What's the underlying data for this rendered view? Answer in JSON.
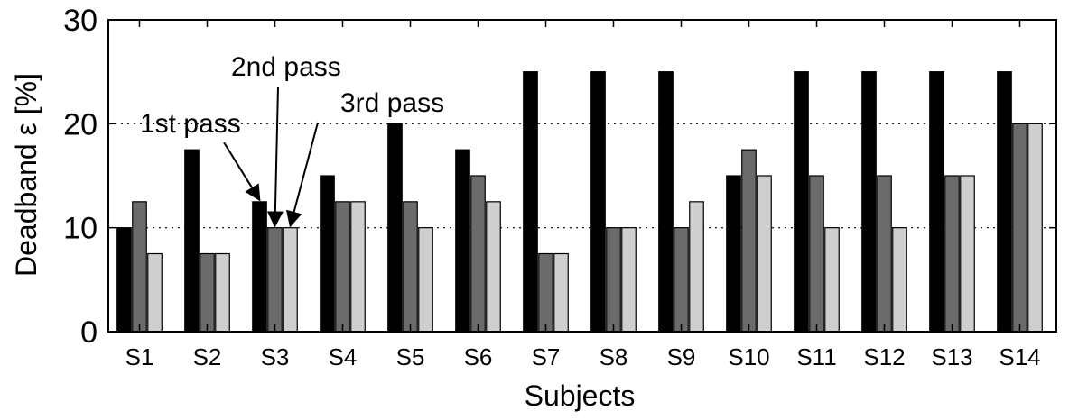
{
  "chart_data": {
    "type": "bar",
    "title": "",
    "xlabel": "Subjects",
    "ylabel": "Deadband ε [%]",
    "ylim": [
      0,
      30
    ],
    "yticks": [
      0,
      10,
      20,
      30
    ],
    "grid": "horizontal dotted",
    "categories": [
      "S1",
      "S2",
      "S3",
      "S4",
      "S5",
      "S6",
      "S7",
      "S8",
      "S9",
      "S10",
      "S11",
      "S12",
      "S13",
      "S14"
    ],
    "series": [
      {
        "color": "#000000",
        "values": [
          10,
          17.5,
          12.5,
          15,
          20,
          17.5,
          25,
          25,
          25,
          15,
          25,
          25,
          25,
          25
        ]
      },
      {
        "color": "#6b6b6b",
        "values": [
          12.5,
          7.5,
          10,
          12.5,
          12.5,
          15,
          7.5,
          10,
          10,
          17.5,
          15,
          15,
          15,
          20
        ]
      },
      {
        "color": "#cfcfcf",
        "values": [
          7.5,
          7.5,
          10,
          12.5,
          10,
          12.5,
          7.5,
          10,
          12.5,
          15,
          10,
          10,
          15,
          20
        ]
      }
    ],
    "annotations": [
      {
        "text": "1st pass",
        "target": {
          "category": "S3",
          "series": 0,
          "value": 12.5
        }
      },
      {
        "text": "2nd pass",
        "target": {
          "category": "S3",
          "series": 1,
          "value": 10
        }
      },
      {
        "text": "3rd pass",
        "target": {
          "category": "S3",
          "series": 2,
          "value": 10
        }
      }
    ]
  }
}
